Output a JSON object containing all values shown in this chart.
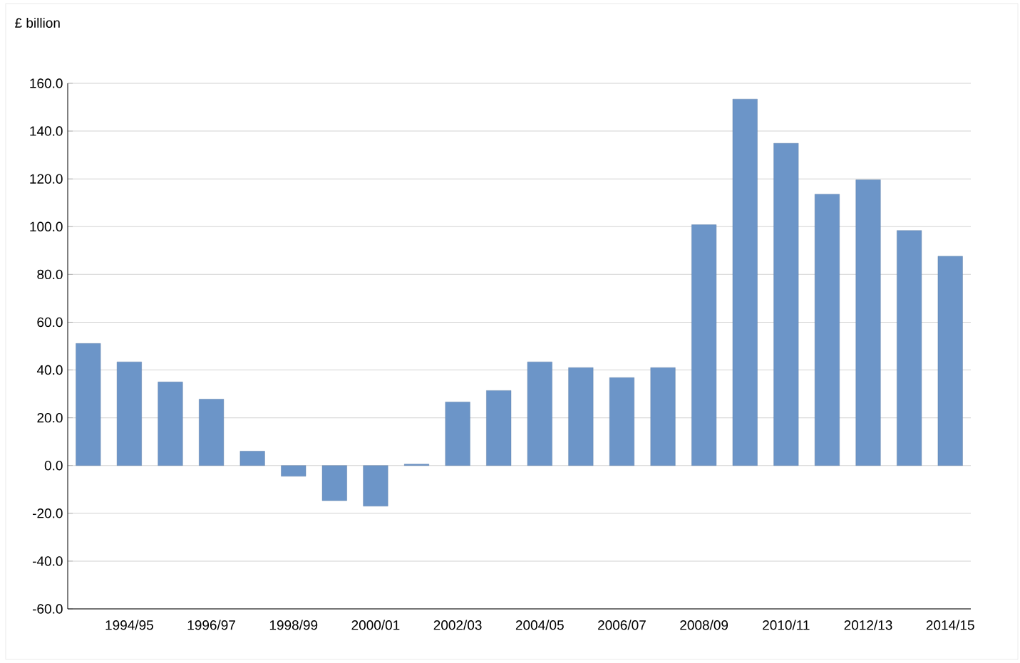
{
  "chart_data": {
    "type": "bar",
    "ylabel": "£ billion",
    "categories": [
      null,
      "1994/95",
      null,
      "1996/97",
      null,
      "1998/99",
      null,
      "2000/01",
      null,
      "2002/03",
      null,
      "2004/05",
      null,
      "2006/07",
      null,
      "2008/09",
      null,
      "2010/11",
      null,
      "2012/13",
      null,
      "2014/15"
    ],
    "values": [
      51.1,
      43.4,
      35.0,
      27.8,
      6.0,
      -4.5,
      -14.7,
      -17.0,
      0.6,
      26.6,
      31.4,
      43.4,
      41.0,
      36.8,
      41.0,
      100.8,
      153.4,
      134.9,
      113.6,
      119.6,
      98.4,
      87.6
    ],
    "color": "#6c95c8",
    "ylim": [
      -60,
      160
    ],
    "yticks": [
      {
        "value": -60,
        "label": "-60.0"
      },
      {
        "value": -40,
        "label": "-40.0"
      },
      {
        "value": -20,
        "label": "-20.0"
      },
      {
        "value": 0,
        "label": "0.0"
      },
      {
        "value": 20,
        "label": "20.0"
      },
      {
        "value": 40,
        "label": "40.0"
      },
      {
        "value": 60,
        "label": "60.0"
      },
      {
        "value": 80,
        "label": "80.0"
      },
      {
        "value": 100,
        "label": "100.0"
      },
      {
        "value": 120,
        "label": "120.0"
      },
      {
        "value": 140,
        "label": "140.0"
      },
      {
        "value": 160,
        "label": "160.0"
      }
    ],
    "grid": "y"
  }
}
